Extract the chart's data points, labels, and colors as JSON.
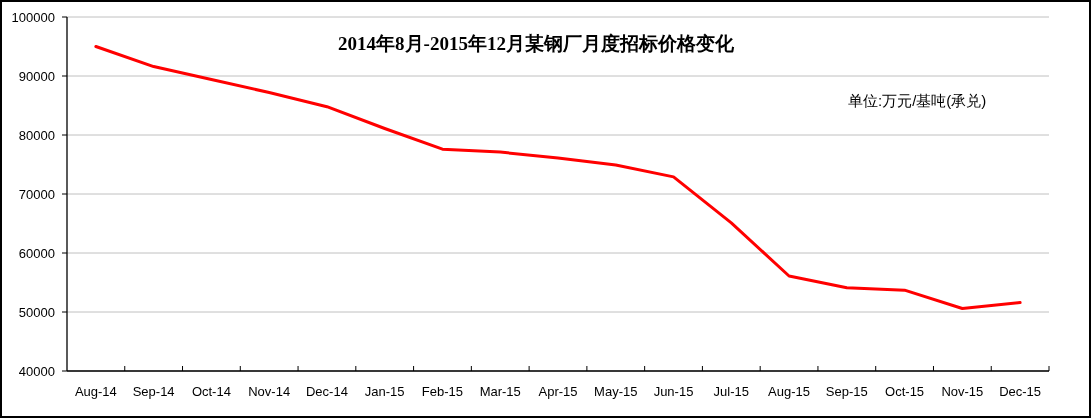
{
  "chart_data": {
    "type": "line",
    "title": "2014年8月-2015年12月某钢厂月度招标价格变化",
    "annotations": [
      "单位:万元/基吨(承兑)"
    ],
    "categories": [
      "Aug-14",
      "Sep-14",
      "Oct-14",
      "Nov-14",
      "Dec-14",
      "Jan-15",
      "Feb-15",
      "Mar-15",
      "Apr-15",
      "May-15",
      "Jun-15",
      "Jul-15",
      "Aug-15",
      "Sep-15",
      "Oct-15",
      "Nov-15",
      "Dec-15"
    ],
    "series": [
      {
        "color": "#ff0000",
        "values": [
          95000,
          91600,
          89400,
          87200,
          84800,
          81100,
          77600,
          77100,
          76100,
          74900,
          72900,
          65100,
          56100,
          54100,
          53700,
          50600,
          51600
        ]
      }
    ],
    "ylim": [
      40000,
      100000
    ],
    "yticks": [
      40000,
      50000,
      60000,
      70000,
      80000,
      90000,
      100000
    ],
    "grid": "y",
    "marker": "none",
    "line_style": "solid"
  }
}
